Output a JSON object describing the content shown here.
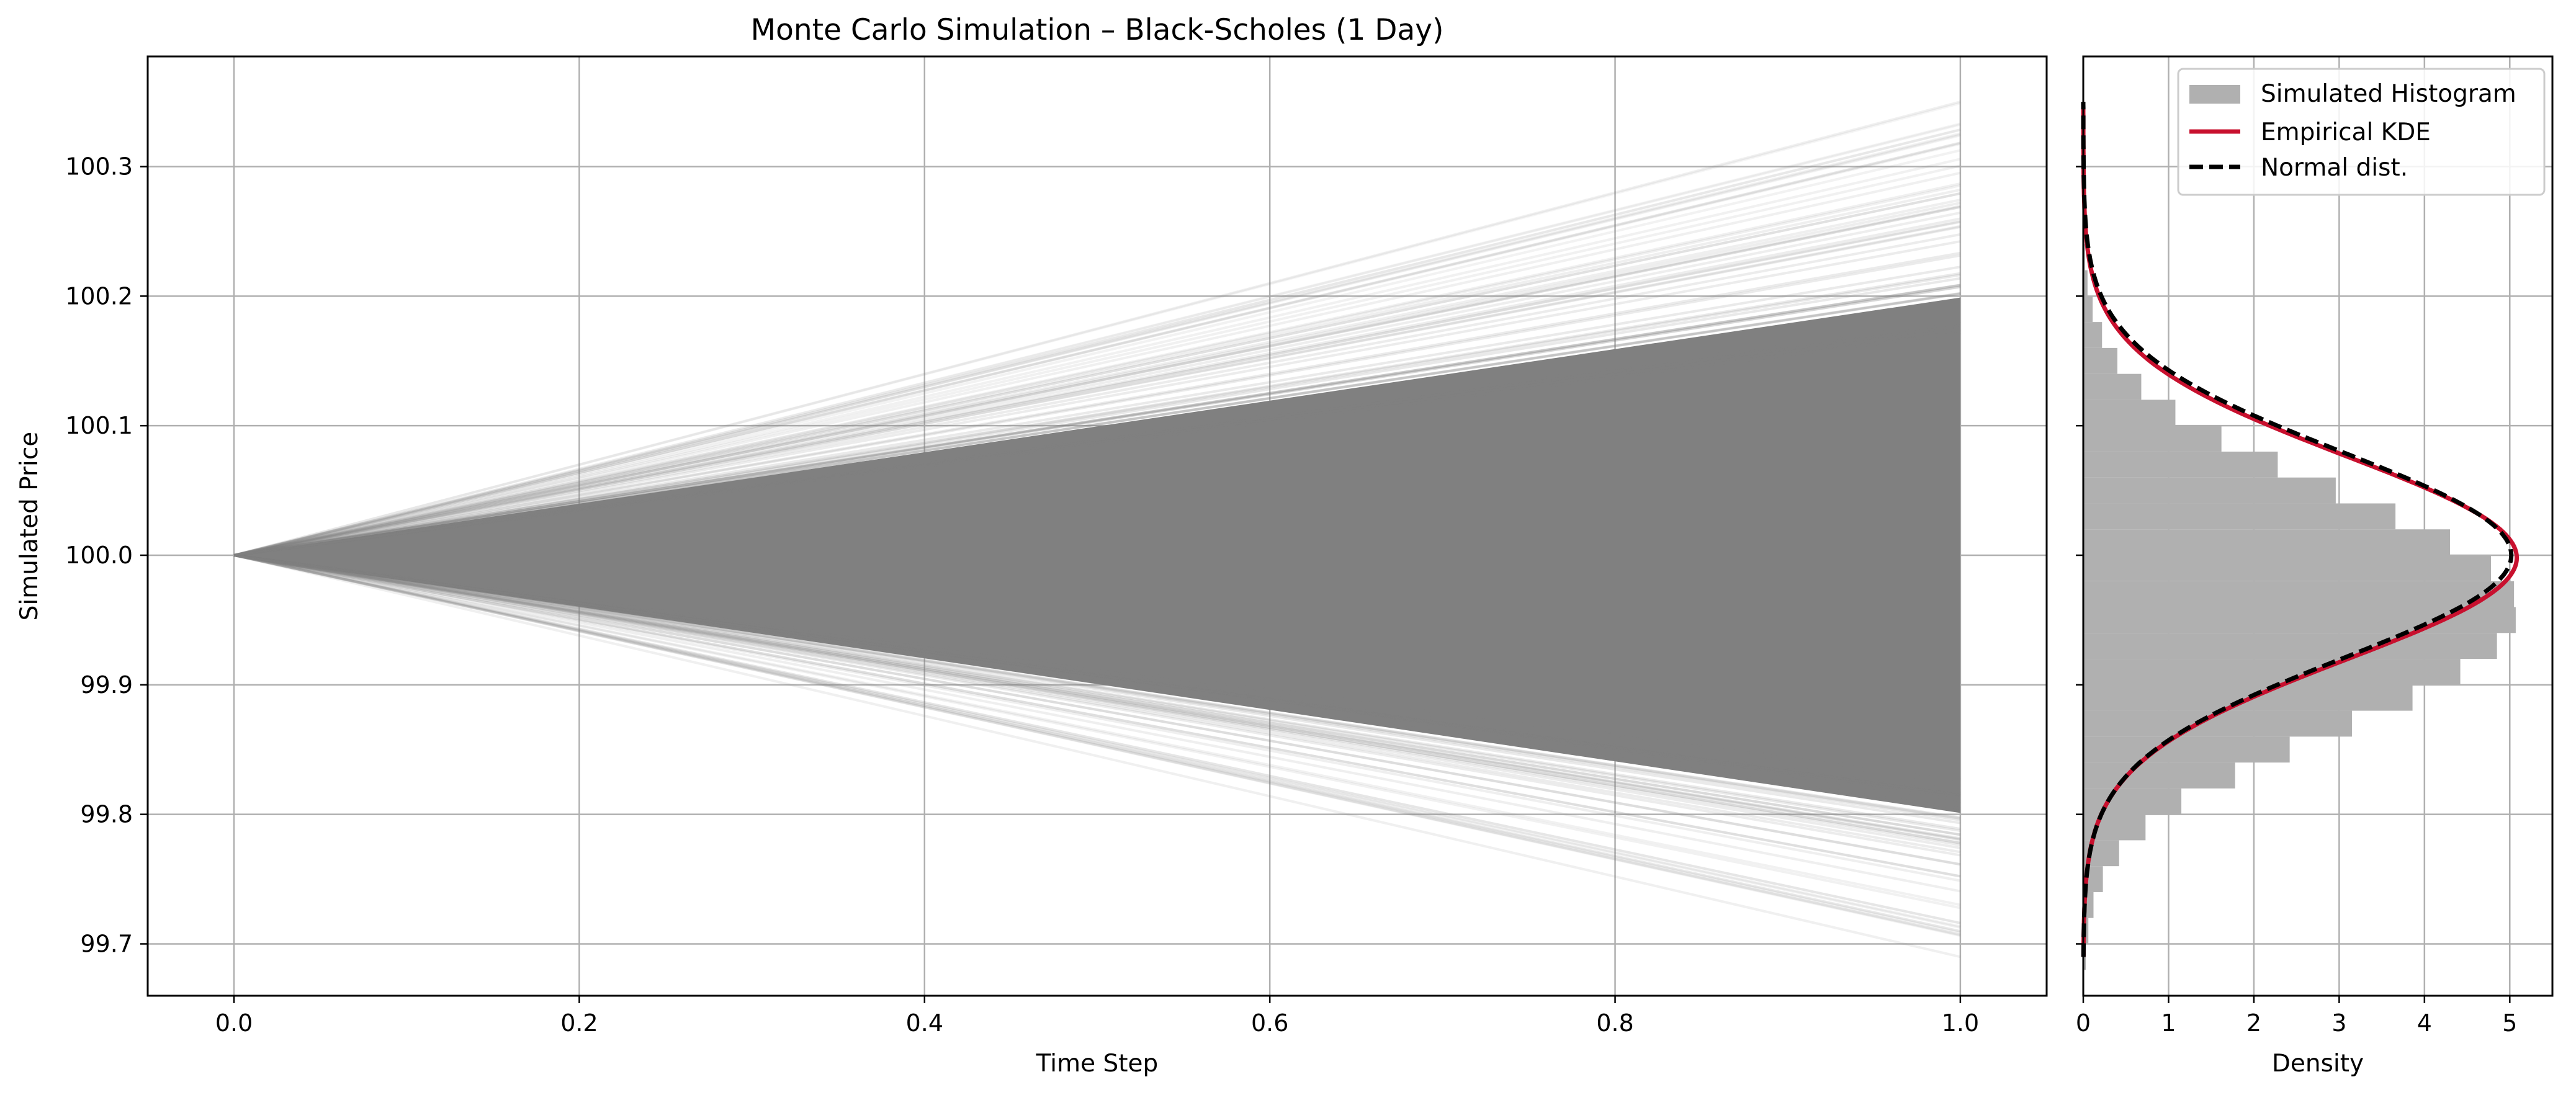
{
  "chart_data": [
    {
      "type": "line",
      "title": "Monte Carlo Simulation – Black-Scholes (1 Day)",
      "xlabel": "Time Step",
      "ylabel": "Simulated Price",
      "xlim": [
        -0.05,
        1.05
      ],
      "ylim": [
        99.66,
        100.385
      ],
      "xticks": [
        "0.0",
        "0.2",
        "0.4",
        "0.6",
        "0.8",
        "1.0"
      ],
      "yticks": [
        "99.7",
        "99.8",
        "99.9",
        "100.0",
        "100.1",
        "100.2",
        "100.3"
      ],
      "grid": true,
      "start_price": 100.0,
      "x": [
        0.0,
        1.0
      ],
      "path_color": "#808080",
      "final_price_mean": 100.0,
      "final_price_std": 0.078,
      "final_price_range": [
        99.69,
        100.35
      ],
      "num_paths_note": "thousands of paths (dense gray fan)"
    },
    {
      "type": "histogram",
      "title": "",
      "xlabel": "Density",
      "ylabel": "",
      "orientation": "horizontal",
      "xlim": [
        0,
        5.5
      ],
      "ylim": [
        99.66,
        100.385
      ],
      "xticks": [
        "0",
        "1",
        "2",
        "3",
        "4",
        "5"
      ],
      "grid": true,
      "legend_position": "top-right",
      "series": [
        {
          "name": "Simulated Histogram",
          "kind": "histogram",
          "color": "#b0b0b0",
          "bin_centers": [
            99.69,
            99.71,
            99.73,
            99.75,
            99.77,
            99.79,
            99.81,
            99.83,
            99.85,
            99.87,
            99.89,
            99.91,
            99.93,
            99.95,
            99.97,
            99.99,
            100.01,
            100.03,
            100.05,
            100.07,
            100.09,
            100.11,
            100.13,
            100.15,
            100.17,
            100.19,
            100.21,
            100.23,
            100.25,
            100.27,
            100.29,
            100.31,
            100.33,
            100.35
          ],
          "density": [
            0.03,
            0.06,
            0.12,
            0.23,
            0.42,
            0.73,
            1.15,
            1.78,
            2.42,
            3.15,
            3.86,
            4.42,
            4.85,
            5.07,
            5.05,
            4.78,
            4.3,
            3.66,
            2.96,
            2.28,
            1.62,
            1.08,
            0.68,
            0.4,
            0.22,
            0.11,
            0.05,
            0.02,
            0.01,
            0.005,
            0.003,
            0.002,
            0.001,
            0.001
          ]
        },
        {
          "name": "Empirical KDE",
          "kind": "line",
          "color": "#c8102e",
          "mean": 99.998,
          "std": 0.0785
        },
        {
          "name": "Normal dist.",
          "kind": "dashed-line",
          "color": "#000000",
          "mean": 100.0,
          "std": 0.0795
        }
      ]
    }
  ]
}
